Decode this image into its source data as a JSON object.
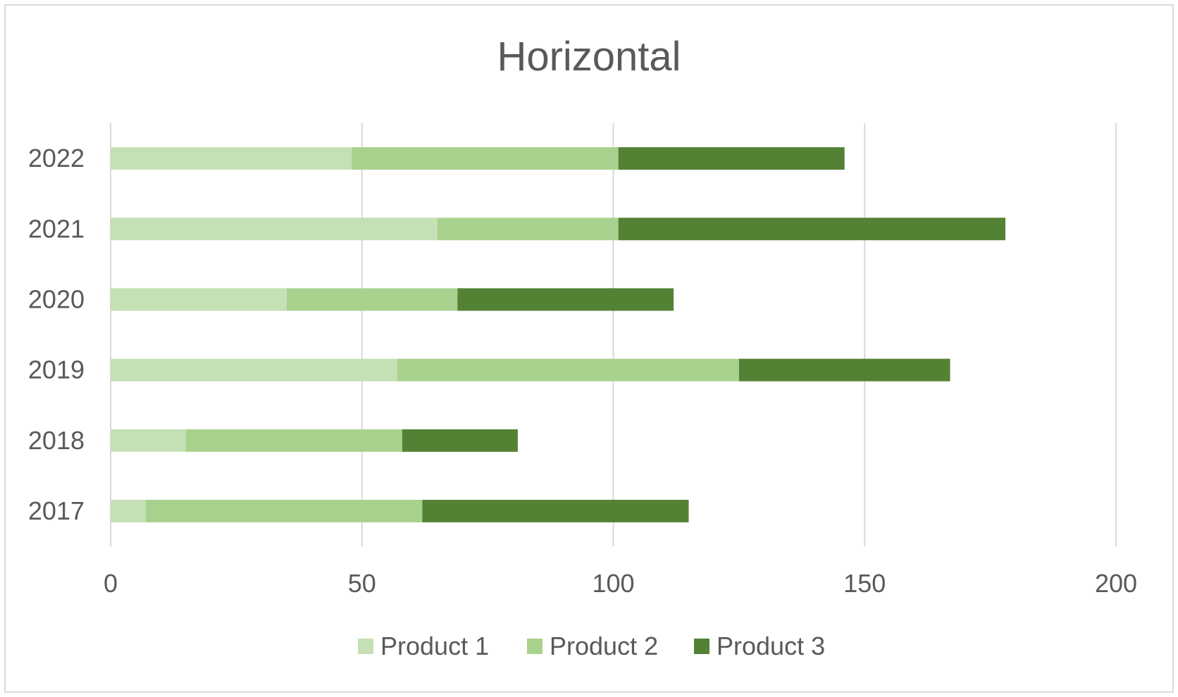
{
  "chart_data": {
    "type": "bar",
    "orientation": "horizontal",
    "stacked": true,
    "title": "Horizontal",
    "categories": [
      "2017",
      "2018",
      "2019",
      "2020",
      "2021",
      "2022"
    ],
    "series": [
      {
        "name": "Product 1",
        "color": "#c5e0b4",
        "values": [
          7,
          15,
          57,
          35,
          65,
          48
        ]
      },
      {
        "name": "Product 2",
        "color": "#a9d18e",
        "values": [
          55,
          43,
          68,
          34,
          36,
          53
        ]
      },
      {
        "name": "Product 3",
        "color": "#548235",
        "values": [
          53,
          23,
          42,
          43,
          77,
          45
        ]
      }
    ],
    "xlim": [
      0,
      200
    ],
    "xticks": [
      "0",
      "50",
      "100",
      "150",
      "200"
    ],
    "grid": true,
    "legend_position": "bottom"
  }
}
